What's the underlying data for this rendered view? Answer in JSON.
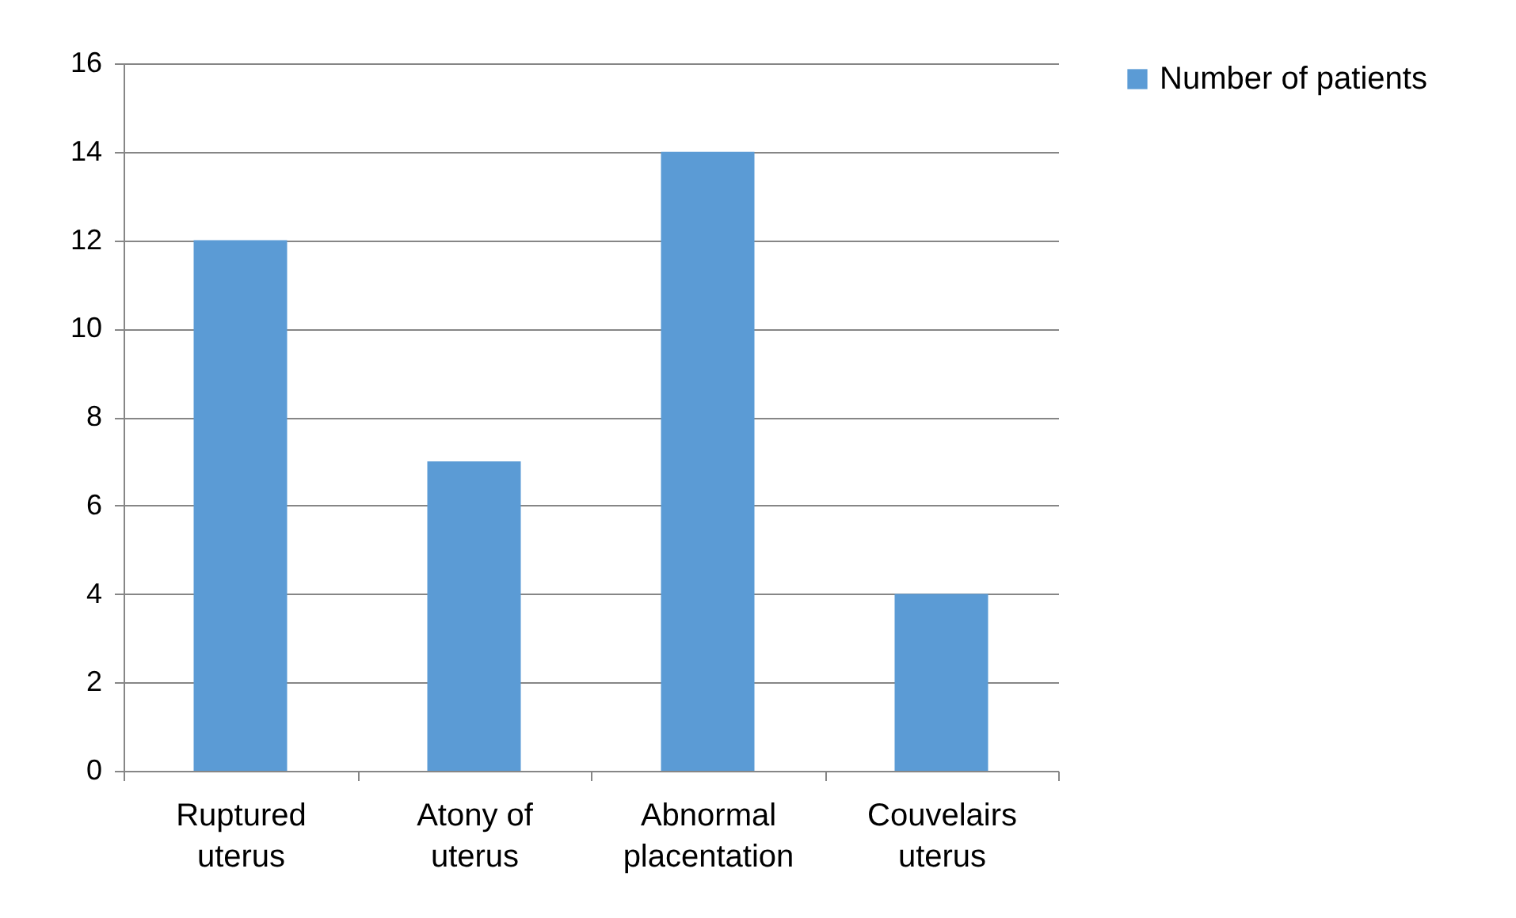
{
  "chart_data": {
    "type": "bar",
    "categories": [
      "Ruptured uterus",
      "Atony of uterus",
      "Abnormal placentation",
      "Couvelairs uterus"
    ],
    "series": [
      {
        "name": "Number of patients",
        "color": "#5b9bd5",
        "values": [
          12,
          7,
          14,
          4
        ]
      }
    ],
    "ylim": [
      0,
      16
    ],
    "yticks": [
      0,
      2,
      4,
      6,
      8,
      10,
      12,
      14,
      16
    ],
    "grid": "y",
    "legend": "right"
  }
}
